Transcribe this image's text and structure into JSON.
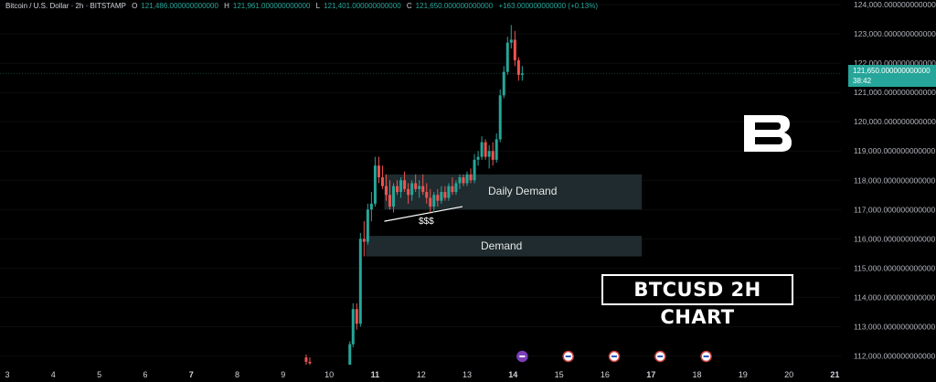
{
  "header": {
    "symbol": "Bitcoin / U.S. Dollar · 2h · BITSTAMP",
    "open_label": "O",
    "open_value": "121,486.000000000000",
    "high_label": "H",
    "high_value": "121,961.000000000000",
    "low_label": "L",
    "low_value": "121,401.000000000000",
    "close_label": "C",
    "close_value": "121,650.000000000000",
    "change": "+163.000000000000 (+0.13%)"
  },
  "current_price": {
    "value": "121,650.000000000000",
    "countdown": "38:42",
    "color": "#26a69a"
  },
  "overlay": {
    "title": "BTCUSD 2H CHART",
    "daily_demand_label": "Daily Demand",
    "demand_label": "Demand",
    "liquidity_label": "$$$"
  },
  "colors": {
    "up": "#26a69a",
    "down": "#ef5350",
    "zone": "#1f2b2e",
    "background": "#000000"
  },
  "chart_data": {
    "type": "candlestick",
    "title": "BTCUSD 2H CHART",
    "ylim": [
      111700,
      124000
    ],
    "yticks": [
      "112,000.000000000000",
      "113,000.000000000000",
      "114,000.000000000000",
      "115,000.000000000000",
      "116,000.000000000000",
      "117,000.000000000000",
      "118,000.000000000000",
      "119,000.000000000000",
      "120,000.000000000000",
      "121,000.000000000000",
      "122,000.000000000000",
      "123,000.000000000000",
      "124,000.000000000000"
    ],
    "ytick_values": [
      112000,
      113000,
      114000,
      115000,
      116000,
      117000,
      118000,
      119000,
      120000,
      121000,
      122000,
      123000,
      124000
    ],
    "xticks": [
      "3",
      "4",
      "5",
      "6",
      "7",
      "8",
      "9",
      "10",
      "11",
      "12",
      "13",
      "14",
      "15",
      "16",
      "17",
      "18",
      "19",
      "20",
      "21"
    ],
    "x_bold": [
      "7",
      "11",
      "14",
      "17",
      "21"
    ],
    "zones": [
      {
        "label": "Daily Demand",
        "start": 11.2,
        "end": 16.8,
        "low": 117000,
        "high": 118200
      },
      {
        "label": "Demand",
        "start": 10.8,
        "end": 16.8,
        "low": 115400,
        "high": 116100
      }
    ],
    "trendline": {
      "label": "$$$",
      "x1": 11.2,
      "y1": 116600,
      "x2": 12.9,
      "y2": 117100
    },
    "current_price": 121650,
    "candles": [
      {
        "x": 9.5,
        "o": 111950,
        "h": 112050,
        "l": 111700,
        "c": 111800
      },
      {
        "x": 9.58,
        "o": 111800,
        "h": 111950,
        "l": 111700,
        "c": 111750
      },
      {
        "x": 10.45,
        "o": 111700,
        "h": 112500,
        "l": 111700,
        "c": 112400
      },
      {
        "x": 10.52,
        "o": 112400,
        "h": 113800,
        "l": 112300,
        "c": 113600
      },
      {
        "x": 10.6,
        "o": 113600,
        "h": 113800,
        "l": 112900,
        "c": 113100
      },
      {
        "x": 10.68,
        "o": 113100,
        "h": 116200,
        "l": 113000,
        "c": 116000
      },
      {
        "x": 10.76,
        "o": 116000,
        "h": 116600,
        "l": 115400,
        "c": 115900
      },
      {
        "x": 10.84,
        "o": 115900,
        "h": 117200,
        "l": 115800,
        "c": 117000
      },
      {
        "x": 10.92,
        "o": 117000,
        "h": 117600,
        "l": 116600,
        "c": 117200
      },
      {
        "x": 11.0,
        "o": 117200,
        "h": 118800,
        "l": 117100,
        "c": 118500
      },
      {
        "x": 11.08,
        "o": 118500,
        "h": 118800,
        "l": 117900,
        "c": 118100
      },
      {
        "x": 11.16,
        "o": 118100,
        "h": 118500,
        "l": 117700,
        "c": 117800
      },
      {
        "x": 11.24,
        "o": 117800,
        "h": 118200,
        "l": 117300,
        "c": 117500
      },
      {
        "x": 11.32,
        "o": 117500,
        "h": 118000,
        "l": 117000,
        "c": 117100
      },
      {
        "x": 11.4,
        "o": 117100,
        "h": 117900,
        "l": 116900,
        "c": 117800
      },
      {
        "x": 11.48,
        "o": 117800,
        "h": 118000,
        "l": 117500,
        "c": 117600
      },
      {
        "x": 11.56,
        "o": 117600,
        "h": 118100,
        "l": 117400,
        "c": 118000
      },
      {
        "x": 11.64,
        "o": 118000,
        "h": 118300,
        "l": 117600,
        "c": 117700
      },
      {
        "x": 11.72,
        "o": 117700,
        "h": 117900,
        "l": 117200,
        "c": 117500
      },
      {
        "x": 11.8,
        "o": 117500,
        "h": 118000,
        "l": 117300,
        "c": 117900
      },
      {
        "x": 11.88,
        "o": 117900,
        "h": 118200,
        "l": 117600,
        "c": 117700
      },
      {
        "x": 11.96,
        "o": 117700,
        "h": 118000,
        "l": 117400,
        "c": 117800
      },
      {
        "x": 12.04,
        "o": 117800,
        "h": 118200,
        "l": 117500,
        "c": 117600
      },
      {
        "x": 12.12,
        "o": 117600,
        "h": 117900,
        "l": 117200,
        "c": 117400
      },
      {
        "x": 12.2,
        "o": 117400,
        "h": 117700,
        "l": 116900,
        "c": 117100
      },
      {
        "x": 12.28,
        "o": 117100,
        "h": 117600,
        "l": 116900,
        "c": 117500
      },
      {
        "x": 12.36,
        "o": 117500,
        "h": 117700,
        "l": 117100,
        "c": 117300
      },
      {
        "x": 12.44,
        "o": 117300,
        "h": 117800,
        "l": 117200,
        "c": 117600
      },
      {
        "x": 12.52,
        "o": 117600,
        "h": 117800,
        "l": 117300,
        "c": 117400
      },
      {
        "x": 12.6,
        "o": 117400,
        "h": 117900,
        "l": 117300,
        "c": 117800
      },
      {
        "x": 12.68,
        "o": 117800,
        "h": 118100,
        "l": 117500,
        "c": 117600
      },
      {
        "x": 12.76,
        "o": 117600,
        "h": 118000,
        "l": 117500,
        "c": 117900
      },
      {
        "x": 12.84,
        "o": 117900,
        "h": 118200,
        "l": 117700,
        "c": 118100
      },
      {
        "x": 12.92,
        "o": 118100,
        "h": 118200,
        "l": 117800,
        "c": 117900
      },
      {
        "x": 13.0,
        "o": 117900,
        "h": 118300,
        "l": 117800,
        "c": 118200
      },
      {
        "x": 13.08,
        "o": 118200,
        "h": 118400,
        "l": 117900,
        "c": 118000
      },
      {
        "x": 13.16,
        "o": 118000,
        "h": 118900,
        "l": 117900,
        "c": 118700
      },
      {
        "x": 13.24,
        "o": 118700,
        "h": 119000,
        "l": 118500,
        "c": 118800
      },
      {
        "x": 13.32,
        "o": 118800,
        "h": 119500,
        "l": 118700,
        "c": 119300
      },
      {
        "x": 13.4,
        "o": 119300,
        "h": 119400,
        "l": 118700,
        "c": 118800
      },
      {
        "x": 13.48,
        "o": 118800,
        "h": 119200,
        "l": 118400,
        "c": 119000
      },
      {
        "x": 13.56,
        "o": 119000,
        "h": 119300,
        "l": 118500,
        "c": 118700
      },
      {
        "x": 13.64,
        "o": 118700,
        "h": 119600,
        "l": 118600,
        "c": 119400
      },
      {
        "x": 13.72,
        "o": 119400,
        "h": 121100,
        "l": 119300,
        "c": 120900
      },
      {
        "x": 13.8,
        "o": 120900,
        "h": 121900,
        "l": 120800,
        "c": 121700
      },
      {
        "x": 13.88,
        "o": 121700,
        "h": 122900,
        "l": 121600,
        "c": 122700
      },
      {
        "x": 13.96,
        "o": 122700,
        "h": 123300,
        "l": 122500,
        "c": 122800
      },
      {
        "x": 14.04,
        "o": 122800,
        "h": 123100,
        "l": 121900,
        "c": 122100
      },
      {
        "x": 14.12,
        "o": 122100,
        "h": 122200,
        "l": 121400,
        "c": 121600
      },
      {
        "x": 14.2,
        "o": 121600,
        "h": 121900,
        "l": 121400,
        "c": 121650
      }
    ],
    "event_markers": [
      14.2,
      15.2,
      16.2,
      17.2,
      18.2
    ]
  }
}
